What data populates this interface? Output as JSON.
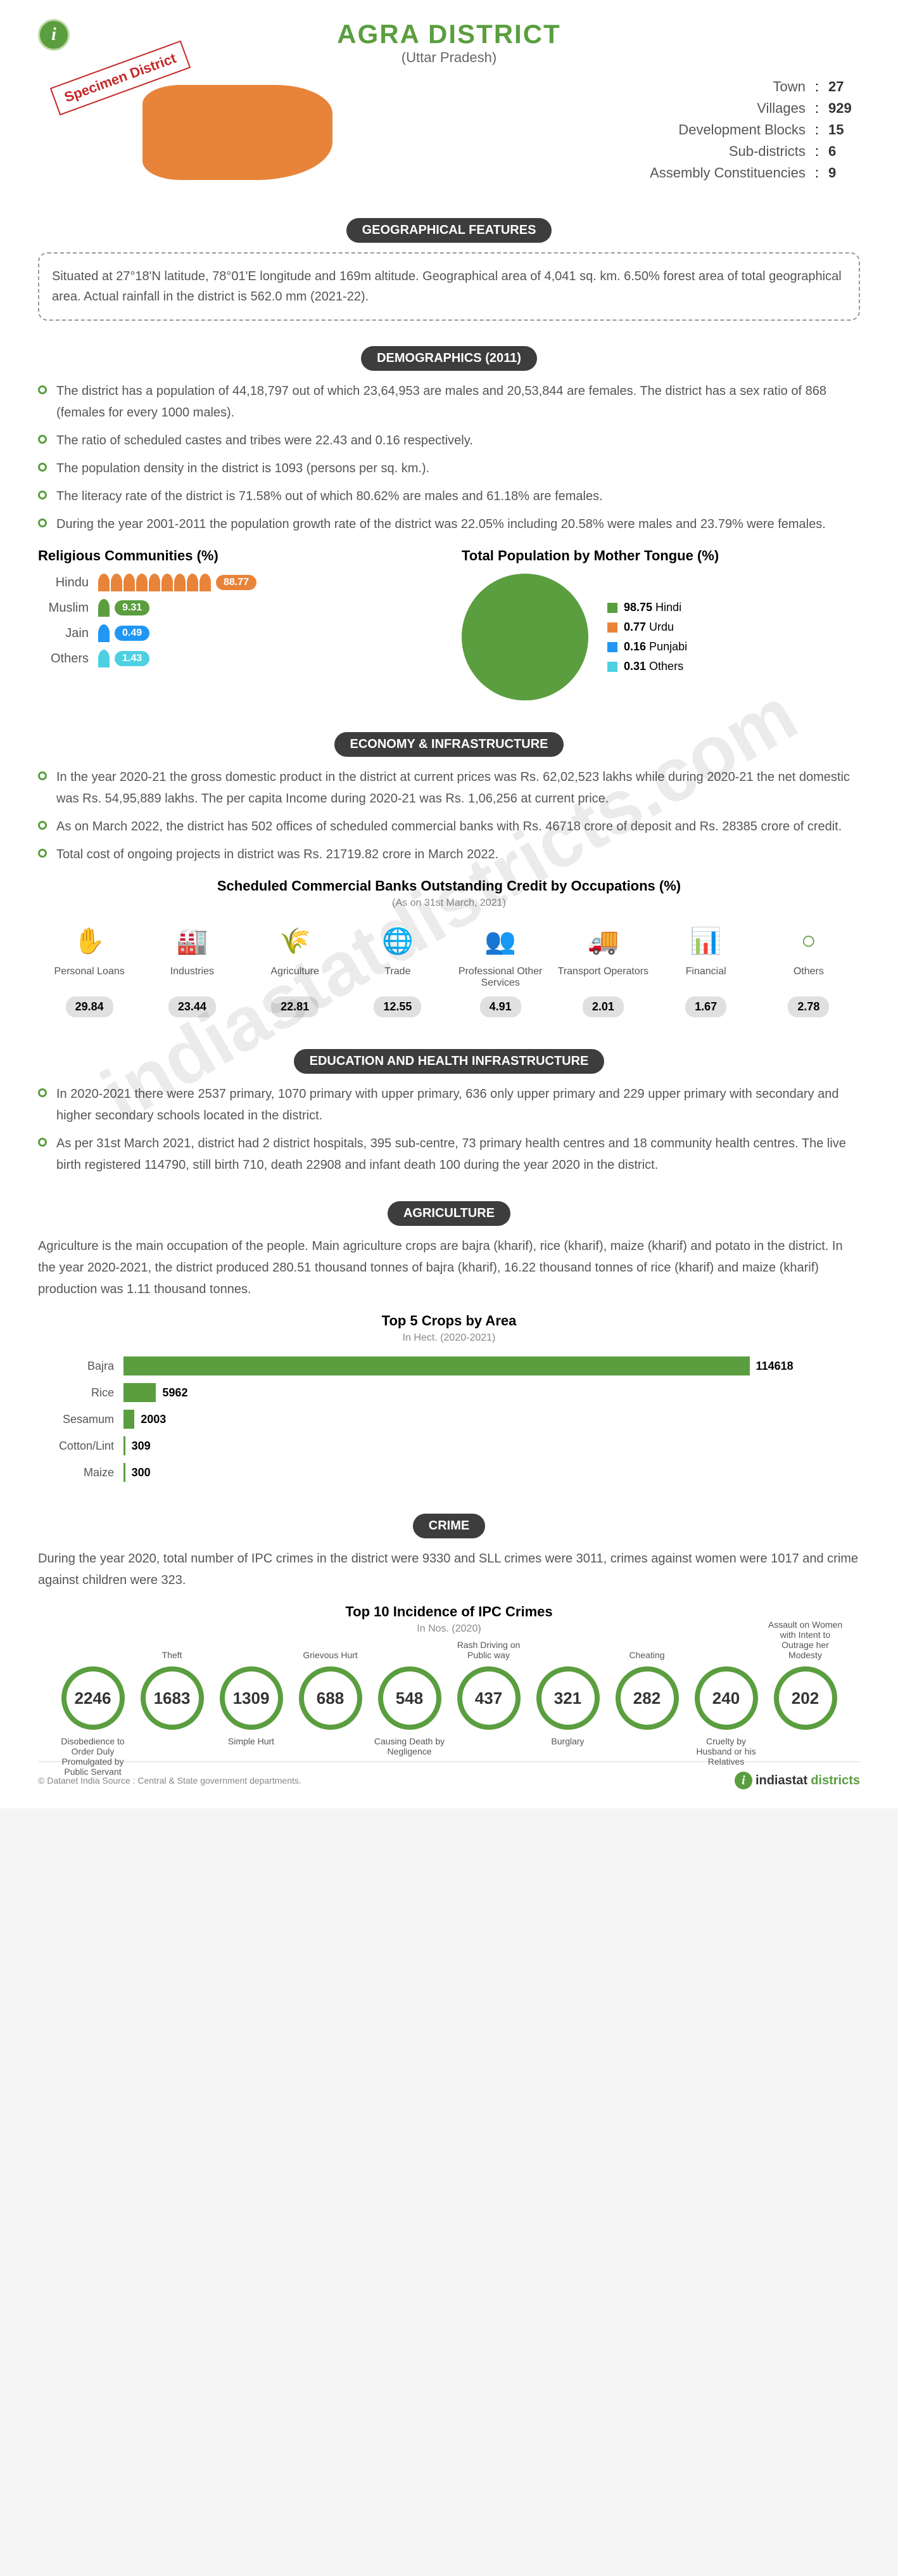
{
  "header": {
    "title": "AGRA DISTRICT",
    "subtitle": "(Uttar Pradesh)",
    "specimen": "Specimen District"
  },
  "top_stats": [
    {
      "label": "Town",
      "value": "27"
    },
    {
      "label": "Villages",
      "value": "929"
    },
    {
      "label": "Development Blocks",
      "value": "15"
    },
    {
      "label": "Sub-districts",
      "value": "6"
    },
    {
      "label": "Assembly Constituencies",
      "value": "9"
    }
  ],
  "geo": {
    "header": "GEOGRAPHICAL FEATURES",
    "text": "Situated at 27°18'N latitude, 78°01'E longitude and 169m altitude. Geographical area of 4,041 sq. km. 6.50% forest area of total geographical area. Actual rainfall in the district is 562.0 mm (2021-22)."
  },
  "demographics": {
    "header": "DEMOGRAPHICS (2011)",
    "bullets": [
      "The district has a population of 44,18,797 out of which 23,64,953 are males and 20,53,844 are females. The district has a sex ratio of 868 (females for every 1000 males).",
      "The ratio of scheduled castes and tribes were 22.43 and 0.16 respectively.",
      "The population density in the district is 1093 (persons per sq. km.).",
      "The literacy rate of the district is 71.58% out of which 80.62% are males and 61.18% are females.",
      "During the year 2001-2011 the population growth rate of the district was 22.05% including 20.58% were males and 23.79% were females."
    ]
  },
  "religion": {
    "title": "Religious Communities (%)",
    "items": [
      {
        "label": "Hindu",
        "value": "88.77",
        "color": "#e8843a",
        "icons": 9
      },
      {
        "label": "Muslim",
        "value": "9.31",
        "color": "#5a9e3f",
        "icons": 1
      },
      {
        "label": "Jain",
        "value": "0.49",
        "color": "#2196f3",
        "icons": 1
      },
      {
        "label": "Others",
        "value": "1.43",
        "color": "#4dd0e1",
        "icons": 1
      }
    ]
  },
  "mother_tongue": {
    "title": "Total Population by Mother Tongue (%)",
    "items": [
      {
        "label": "Hindi",
        "value": "98.75",
        "color": "#5a9e3f"
      },
      {
        "label": "Urdu",
        "value": "0.77",
        "color": "#e8843a"
      },
      {
        "label": "Punjabi",
        "value": "0.16",
        "color": "#2196f3"
      },
      {
        "label": "Others",
        "value": "0.31",
        "color": "#4dd0e1"
      }
    ]
  },
  "economy": {
    "header": "ECONOMY & INFRASTRUCTURE",
    "bullets": [
      "In the year 2020-21 the gross domestic product in the district at current prices was Rs. 62,02,523 lakhs while during 2020-21 the net domestic was Rs. 54,95,889 lakhs. The per capita Income during 2020-21 was Rs. 1,06,256 at current price.",
      "As on March 2022, the district has 502 offices of scheduled commercial banks with Rs. 46718 crore of deposit and Rs. 28385 crore of credit.",
      "Total cost of ongoing projects in district was Rs. 21719.82 crore in March 2022."
    ]
  },
  "credit": {
    "title": "Scheduled Commercial Banks Outstanding Credit by Occupations (%)",
    "caption": "(As on 31st March, 2021)",
    "items": [
      {
        "label": "Personal Loans",
        "value": "29.84",
        "icon": "✋"
      },
      {
        "label": "Industries",
        "value": "23.44",
        "icon": "🏭"
      },
      {
        "label": "Agriculture",
        "value": "22.81",
        "icon": "🌾"
      },
      {
        "label": "Trade",
        "value": "12.55",
        "icon": "🌐"
      },
      {
        "label": "Professional Other Services",
        "value": "4.91",
        "icon": "👥"
      },
      {
        "label": "Transport Operators",
        "value": "2.01",
        "icon": "🚚"
      },
      {
        "label": "Financial",
        "value": "1.67",
        "icon": "📊"
      },
      {
        "label": "Others",
        "value": "2.78",
        "icon": "○"
      }
    ]
  },
  "education": {
    "header": "EDUCATION AND HEALTH INFRASTRUCTURE",
    "bullets": [
      "In 2020-2021 there were 2537 primary, 1070 primary with upper primary, 636 only upper primary and 229 upper primary with secondary and higher secondary schools located in the district.",
      "As per 31st March 2021, district had 2 district hospitals, 395 sub-centre, 73 primary health centres and 18 community health centres. The live birth registered 114790, still birth 710, death 22908 and infant death 100 during the year 2020 in the district."
    ]
  },
  "agriculture": {
    "header": "AGRICULTURE",
    "para": "Agriculture is the main occupation of the people. Main agriculture crops are bajra (kharif), rice (kharif), maize (kharif) and potato in the district. In the year 2020-2021, the district produced 280.51 thousand tonnes of bajra (kharif), 16.22 thousand tonnes of rice (kharif) and maize (kharif) production was 1.11 thousand tonnes."
  },
  "crops": {
    "title": "Top 5 Crops by Area",
    "caption": "In Hect. (2020-2021)",
    "max": 114618,
    "items": [
      {
        "label": "Bajra",
        "value": 114618
      },
      {
        "label": "Rice",
        "value": 5962
      },
      {
        "label": "Sesamum",
        "value": 2003
      },
      {
        "label": "Cotton/Lint",
        "value": 309
      },
      {
        "label": "Maize",
        "value": 300
      }
    ]
  },
  "crime": {
    "header": "CRIME",
    "para": "During the year 2020, total number of IPC crimes in the district were 9330 and SLL crimes were 3011, crimes against women were 1017 and crime against children were 323.",
    "title": "Top 10 Incidence of IPC Crimes",
    "caption": "In Nos. (2020)",
    "items": [
      {
        "value": "2246",
        "label": "Disobedience to Order Duly Promulgated by Public Servant",
        "pos": "bottom"
      },
      {
        "value": "1683",
        "label": "Theft",
        "pos": "top"
      },
      {
        "value": "1309",
        "label": "Simple Hurt",
        "pos": "bottom"
      },
      {
        "value": "688",
        "label": "Grievous Hurt",
        "pos": "top"
      },
      {
        "value": "548",
        "label": "Causing Death by Negligence",
        "pos": "bottom"
      },
      {
        "value": "437",
        "label": "Rash Driving on Public way",
        "pos": "top"
      },
      {
        "value": "321",
        "label": "Burglary",
        "pos": "bottom"
      },
      {
        "value": "282",
        "label": "Cheating",
        "pos": "top"
      },
      {
        "value": "240",
        "label": "Cruelty by Husband or his Relatives",
        "pos": "bottom"
      },
      {
        "value": "202",
        "label": "Assault on Women with Intent to Outrage her Modesty",
        "pos": "top"
      }
    ]
  },
  "footer": {
    "copyright": "© Datanet India Source : Central & State government departments.",
    "brand1": "indiastat",
    "brand2": "districts"
  },
  "watermark": "indiastatdistricts.com"
}
